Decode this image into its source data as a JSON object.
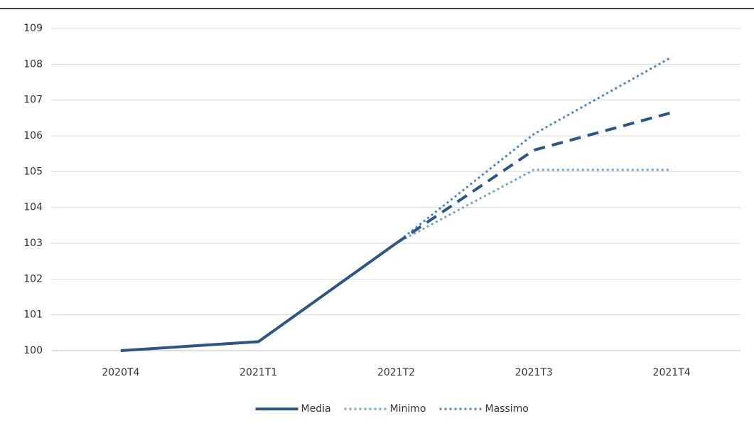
{
  "chart_data": {
    "type": "line",
    "categories": [
      "2020T4",
      "2021T1",
      "2021T2",
      "2021T3",
      "2021T4"
    ],
    "series": [
      {
        "name": "Media",
        "color": "#2b5687",
        "style": "solid",
        "dashed_from_index": 2,
        "values": [
          100,
          100.25,
          103,
          105.6,
          106.65
        ]
      },
      {
        "name": "Minimo",
        "color": "#6ea6d9",
        "style": "dotted",
        "values": [
          null,
          null,
          103,
          105.05,
          105.05
        ]
      },
      {
        "name": "Massimo",
        "color": "#4a86c4",
        "style": "dotted",
        "values": [
          null,
          null,
          103,
          106.05,
          108.2
        ]
      }
    ],
    "ylim": [
      100,
      109
    ],
    "yticks": [
      100,
      101,
      102,
      103,
      104,
      105,
      106,
      107,
      108,
      109
    ],
    "grid": true,
    "legend": "bottom"
  }
}
